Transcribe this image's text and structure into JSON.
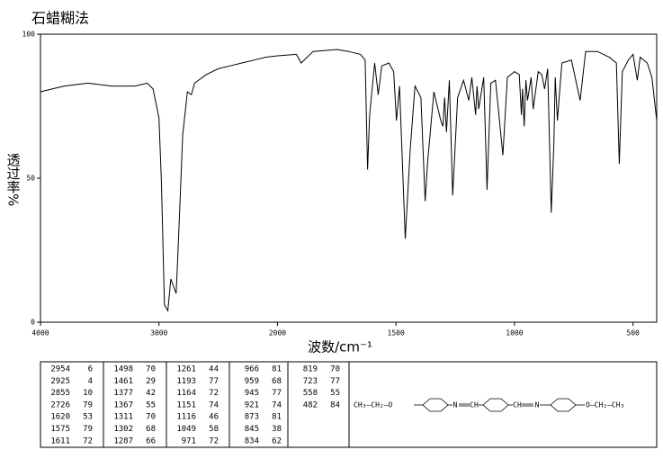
{
  "chart_data": {
    "type": "line",
    "title": "石蜡糊法",
    "xlabel": "波数/cm⁻¹",
    "ylabel": "透过率%",
    "xlim": [
      4000,
      400
    ],
    "ylim": [
      0,
      100
    ],
    "x_scale_change": {
      "at": 2000,
      "factor": 2
    },
    "xticks": [
      4000,
      3000,
      2000,
      1500,
      1000,
      500
    ],
    "yticks": [
      0,
      50,
      100
    ],
    "color": "#000000",
    "x": [
      4000,
      3800,
      3600,
      3400,
      3200,
      3100,
      3050,
      3000,
      2980,
      2954,
      2925,
      2900,
      2855,
      2840,
      2800,
      2760,
      2726,
      2700,
      2600,
      2500,
      2400,
      2300,
      2200,
      2100,
      2000,
      1920,
      1900,
      1850,
      1750,
      1700,
      1650,
      1630,
      1620,
      1611,
      1590,
      1575,
      1560,
      1530,
      1510,
      1498,
      1485,
      1461,
      1440,
      1420,
      1395,
      1377,
      1367,
      1340,
      1311,
      1302,
      1295,
      1287,
      1275,
      1261,
      1240,
      1215,
      1193,
      1180,
      1164,
      1158,
      1151,
      1130,
      1116,
      1100,
      1080,
      1049,
      1030,
      1000,
      980,
      971,
      966,
      959,
      952,
      945,
      930,
      921,
      900,
      885,
      873,
      860,
      845,
      834,
      828,
      819,
      800,
      760,
      723,
      700,
      650,
      600,
      570,
      558,
      545,
      520,
      500,
      482,
      470,
      440,
      420,
      400
    ],
    "values": [
      80,
      82,
      83,
      82,
      82,
      83,
      81,
      71,
      49,
      6,
      4,
      15,
      10,
      24,
      65,
      80,
      79,
      83,
      86,
      88,
      89,
      90,
      91,
      92,
      92.5,
      93,
      90,
      94,
      94.7,
      94,
      93,
      91,
      53,
      72,
      90,
      79,
      89,
      90,
      87,
      70,
      82,
      29,
      60,
      82,
      78,
      42,
      55,
      80,
      70,
      68,
      78,
      66,
      84,
      44,
      78,
      84,
      77,
      85,
      72,
      82,
      74,
      85,
      46,
      83,
      84,
      58,
      85,
      87,
      86,
      72,
      81,
      68,
      84,
      77,
      85,
      74,
      87,
      86,
      81,
      88,
      38,
      62,
      85,
      70,
      90,
      91,
      77,
      94,
      94,
      92,
      90,
      55,
      87,
      91,
      93,
      84,
      92,
      90,
      85,
      70
    ]
  },
  "peak_table": [
    [
      2954,
      6
    ],
    [
      2925,
      4
    ],
    [
      2855,
      10
    ],
    [
      2726,
      79
    ],
    [
      1620,
      53
    ],
    [
      1575,
      79
    ],
    [
      1611,
      72
    ],
    [
      1498,
      70
    ],
    [
      1461,
      29
    ],
    [
      1377,
      42
    ],
    [
      1367,
      55
    ],
    [
      1311,
      70
    ],
    [
      1302,
      68
    ],
    [
      1287,
      66
    ],
    [
      1261,
      44
    ],
    [
      1193,
      77
    ],
    [
      1164,
      72
    ],
    [
      1151,
      74
    ],
    [
      1116,
      46
    ],
    [
      1049,
      58
    ],
    [
      971,
      72
    ],
    [
      966,
      81
    ],
    [
      959,
      68
    ],
    [
      945,
      77
    ],
    [
      921,
      74
    ],
    [
      873,
      81
    ],
    [
      845,
      38
    ],
    [
      834,
      62
    ],
    [
      819,
      70
    ],
    [
      723,
      77
    ],
    [
      558,
      55
    ],
    [
      482,
      84
    ]
  ],
  "structure": {
    "left": "CH₃—CH₂—O",
    "n1": "N",
    "ch1": "CH",
    "ch2": "CH",
    "n2": "N",
    "right": "O—CH₂—CH₃"
  }
}
